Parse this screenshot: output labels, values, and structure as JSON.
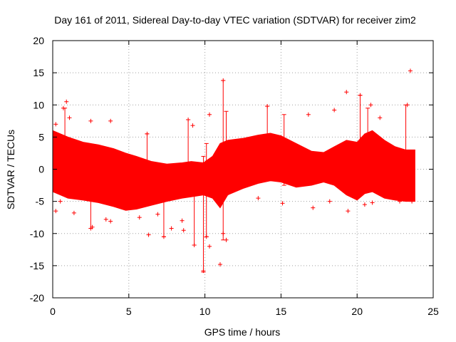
{
  "chart_data": {
    "type": "scatter",
    "title": "Day 161 of 2011, Sidereal Day-to-day VTEC variation (SDTVAR) for receiver zim2",
    "xlabel": "GPS time / hours",
    "ylabel": "SDTVAR / TECUs",
    "xlim": [
      0,
      25
    ],
    "ylim": [
      -20,
      20
    ],
    "x_ticks": [
      0,
      5,
      10,
      15,
      20,
      25
    ],
    "y_ticks": [
      -20,
      -15,
      -10,
      -5,
      0,
      5,
      10,
      15,
      20
    ],
    "grid": true,
    "marker": "+",
    "error_bars": true,
    "series_color": "#ff0000",
    "series": [
      {
        "name": "SDTVAR",
        "band_envelope": [
          {
            "x": 0.0,
            "low": -3.5,
            "high": 6.0
          },
          {
            "x": 0.5,
            "low": -4.0,
            "high": 5.5
          },
          {
            "x": 1.0,
            "low": -4.5,
            "high": 5.0
          },
          {
            "x": 2.0,
            "low": -4.8,
            "high": 4.2
          },
          {
            "x": 3.0,
            "low": -5.2,
            "high": 3.8
          },
          {
            "x": 4.0,
            "low": -5.8,
            "high": 3.2
          },
          {
            "x": 4.8,
            "low": -6.4,
            "high": 2.5
          },
          {
            "x": 5.5,
            "low": -6.2,
            "high": 2.0
          },
          {
            "x": 6.5,
            "low": -5.6,
            "high": 1.2
          },
          {
            "x": 7.5,
            "low": -5.0,
            "high": 0.8
          },
          {
            "x": 8.5,
            "low": -4.5,
            "high": 1.0
          },
          {
            "x": 9.1,
            "low": -4.3,
            "high": 1.2
          },
          {
            "x": 9.9,
            "low": -4.0,
            "high": 1.0
          },
          {
            "x": 10.5,
            "low": -4.5,
            "high": 2.0
          },
          {
            "x": 11.0,
            "low": -6.0,
            "high": 4.0
          },
          {
            "x": 11.5,
            "low": -4.0,
            "high": 4.5
          },
          {
            "x": 12.5,
            "low": -3.0,
            "high": 4.8
          },
          {
            "x": 13.5,
            "low": -2.2,
            "high": 5.3
          },
          {
            "x": 14.3,
            "low": -1.8,
            "high": 5.6
          },
          {
            "x": 15.0,
            "low": -2.0,
            "high": 5.2
          },
          {
            "x": 16.0,
            "low": -2.8,
            "high": 4.0
          },
          {
            "x": 17.0,
            "low": -2.5,
            "high": 2.8
          },
          {
            "x": 17.8,
            "low": -2.0,
            "high": 2.6
          },
          {
            "x": 18.5,
            "low": -2.5,
            "high": 3.5
          },
          {
            "x": 19.3,
            "low": -4.0,
            "high": 4.5
          },
          {
            "x": 20.0,
            "low": -4.8,
            "high": 4.2
          },
          {
            "x": 20.5,
            "low": -3.8,
            "high": 5.5
          },
          {
            "x": 21.0,
            "low": -3.5,
            "high": 6.0
          },
          {
            "x": 21.8,
            "low": -4.5,
            "high": 4.5
          },
          {
            "x": 22.5,
            "low": -4.8,
            "high": 3.5
          },
          {
            "x": 23.2,
            "low": -5.0,
            "high": 3.0
          },
          {
            "x": 23.8,
            "low": -5.0,
            "high": 3.0
          }
        ],
        "outliers": [
          {
            "x": 0.9,
            "y": 10.5
          },
          {
            "x": 0.7,
            "y": 9.5
          },
          {
            "x": 1.1,
            "y": 8.0
          },
          {
            "x": 2.5,
            "y": 7.5
          },
          {
            "x": 3.8,
            "y": 7.5
          },
          {
            "x": 6.2,
            "y": 5.5
          },
          {
            "x": 8.9,
            "y": 7.7
          },
          {
            "x": 9.2,
            "y": 6.8
          },
          {
            "x": 10.3,
            "y": 8.5
          },
          {
            "x": 11.2,
            "y": 13.8
          },
          {
            "x": 14.1,
            "y": 9.8
          },
          {
            "x": 18.5,
            "y": 9.2
          },
          {
            "x": 19.3,
            "y": 12.0
          },
          {
            "x": 20.2,
            "y": 11.5
          },
          {
            "x": 20.9,
            "y": 10.0
          },
          {
            "x": 23.3,
            "y": 10.0
          },
          {
            "x": 23.5,
            "y": 15.3
          },
          {
            "x": 16.8,
            "y": 8.5
          },
          {
            "x": 21.5,
            "y": 8.0
          },
          {
            "x": 0.2,
            "y": 7.0
          },
          {
            "x": 0.2,
            "y": -6.5
          },
          {
            "x": 1.4,
            "y": -6.8
          },
          {
            "x": 2.6,
            "y": -9.0
          },
          {
            "x": 2.5,
            "y": -9.2
          },
          {
            "x": 3.5,
            "y": -7.8
          },
          {
            "x": 3.8,
            "y": -8.1
          },
          {
            "x": 6.3,
            "y": -10.2
          },
          {
            "x": 7.3,
            "y": -10.5
          },
          {
            "x": 7.8,
            "y": -9.2
          },
          {
            "x": 8.6,
            "y": -9.5
          },
          {
            "x": 9.3,
            "y": -11.8
          },
          {
            "x": 9.9,
            "y": -15.8
          },
          {
            "x": 10.1,
            "y": -10.5
          },
          {
            "x": 11.0,
            "y": -14.8
          },
          {
            "x": 11.2,
            "y": -10.0
          },
          {
            "x": 11.4,
            "y": -11.0
          },
          {
            "x": 13.5,
            "y": -4.5
          },
          {
            "x": 15.1,
            "y": -5.3
          },
          {
            "x": 17.1,
            "y": -6.0
          },
          {
            "x": 18.2,
            "y": -5.0
          },
          {
            "x": 19.4,
            "y": -6.5
          },
          {
            "x": 20.5,
            "y": -5.5
          },
          {
            "x": 21.0,
            "y": -5.2
          },
          {
            "x": 22.8,
            "y": -5.0
          },
          {
            "x": 23.6,
            "y": -5.0
          },
          {
            "x": 0.5,
            "y": -5.0
          },
          {
            "x": 8.5,
            "y": -8.0
          },
          {
            "x": 10.3,
            "y": -12.0
          },
          {
            "x": 6.9,
            "y": -7.0
          },
          {
            "x": 5.7,
            "y": -7.5
          }
        ],
        "error_bars_list": [
          {
            "x": 0.8,
            "low": -1.0,
            "high": 9.5
          },
          {
            "x": 6.2,
            "low": -3.0,
            "high": 5.5
          },
          {
            "x": 9.9,
            "low": -16.0,
            "high": 2.0
          },
          {
            "x": 10.1,
            "low": -10.5,
            "high": 4.0
          },
          {
            "x": 11.2,
            "low": -11.0,
            "high": 13.8
          },
          {
            "x": 11.4,
            "low": -4.0,
            "high": 9.0
          },
          {
            "x": 14.1,
            "low": 1.0,
            "high": 9.8
          },
          {
            "x": 15.2,
            "low": -2.5,
            "high": 8.5
          },
          {
            "x": 20.2,
            "low": -1.0,
            "high": 11.5
          },
          {
            "x": 20.7,
            "low": -2.0,
            "high": 9.5
          },
          {
            "x": 23.2,
            "low": -3.0,
            "high": 10.0
          },
          {
            "x": 2.5,
            "low": -9.2,
            "high": -3.0
          },
          {
            "x": 7.3,
            "low": -10.5,
            "high": -4.0
          },
          {
            "x": 9.3,
            "low": -11.8,
            "high": -3.0
          },
          {
            "x": 8.9,
            "low": -2.0,
            "high": 7.7
          }
        ]
      }
    ]
  }
}
